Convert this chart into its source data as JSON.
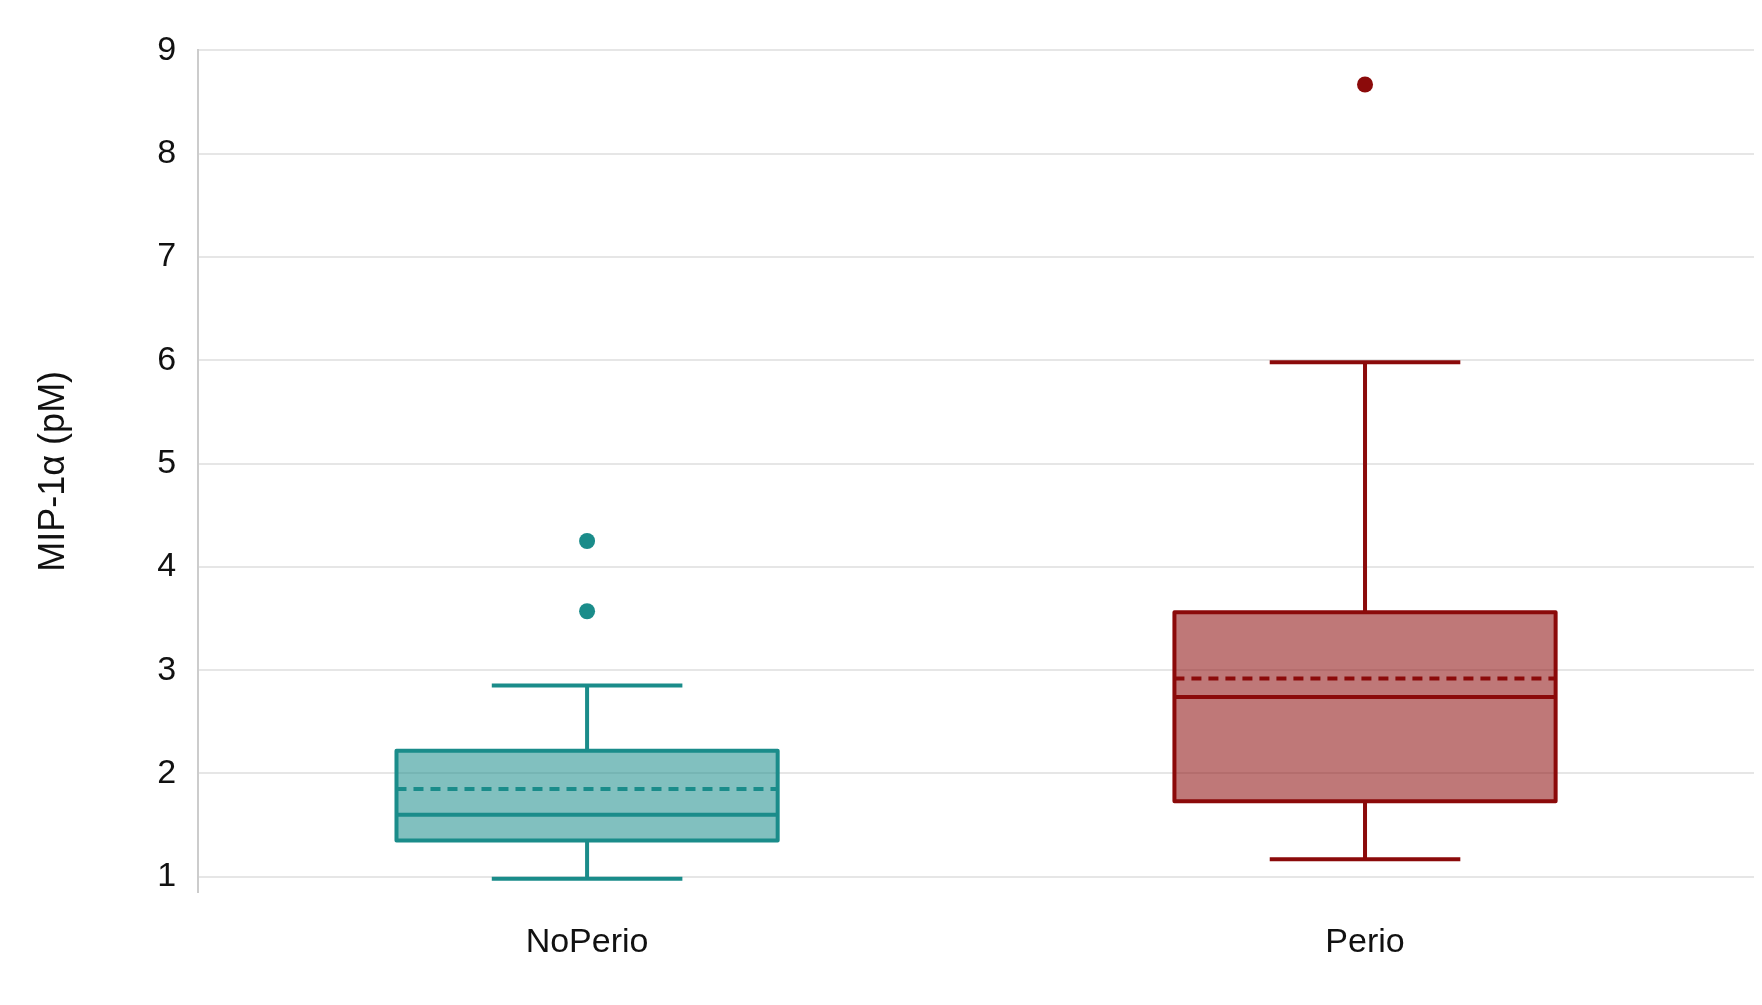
{
  "chart_data": {
    "type": "box",
    "ylabel": "MIP-1α (pM)",
    "categories": [
      "NoPerio",
      "Perio"
    ],
    "colors": [
      "#1a8c8a",
      "#8b0a0a"
    ],
    "boxes": [
      {
        "low": 0.98,
        "q1": 1.35,
        "median": 1.6,
        "q3": 2.22,
        "high": 2.85,
        "mean": 1.85,
        "outliers": [
          3.57,
          4.25
        ]
      },
      {
        "low": 1.17,
        "q1": 1.73,
        "median": 2.74,
        "q3": 3.56,
        "high": 5.98,
        "mean": 2.92,
        "outliers": [
          8.67
        ]
      }
    ],
    "ylim": [
      0.85,
      9
    ],
    "yticks": [
      1,
      2,
      3,
      4,
      5,
      6,
      7,
      8,
      9
    ],
    "grid": "y",
    "legend": false
  }
}
